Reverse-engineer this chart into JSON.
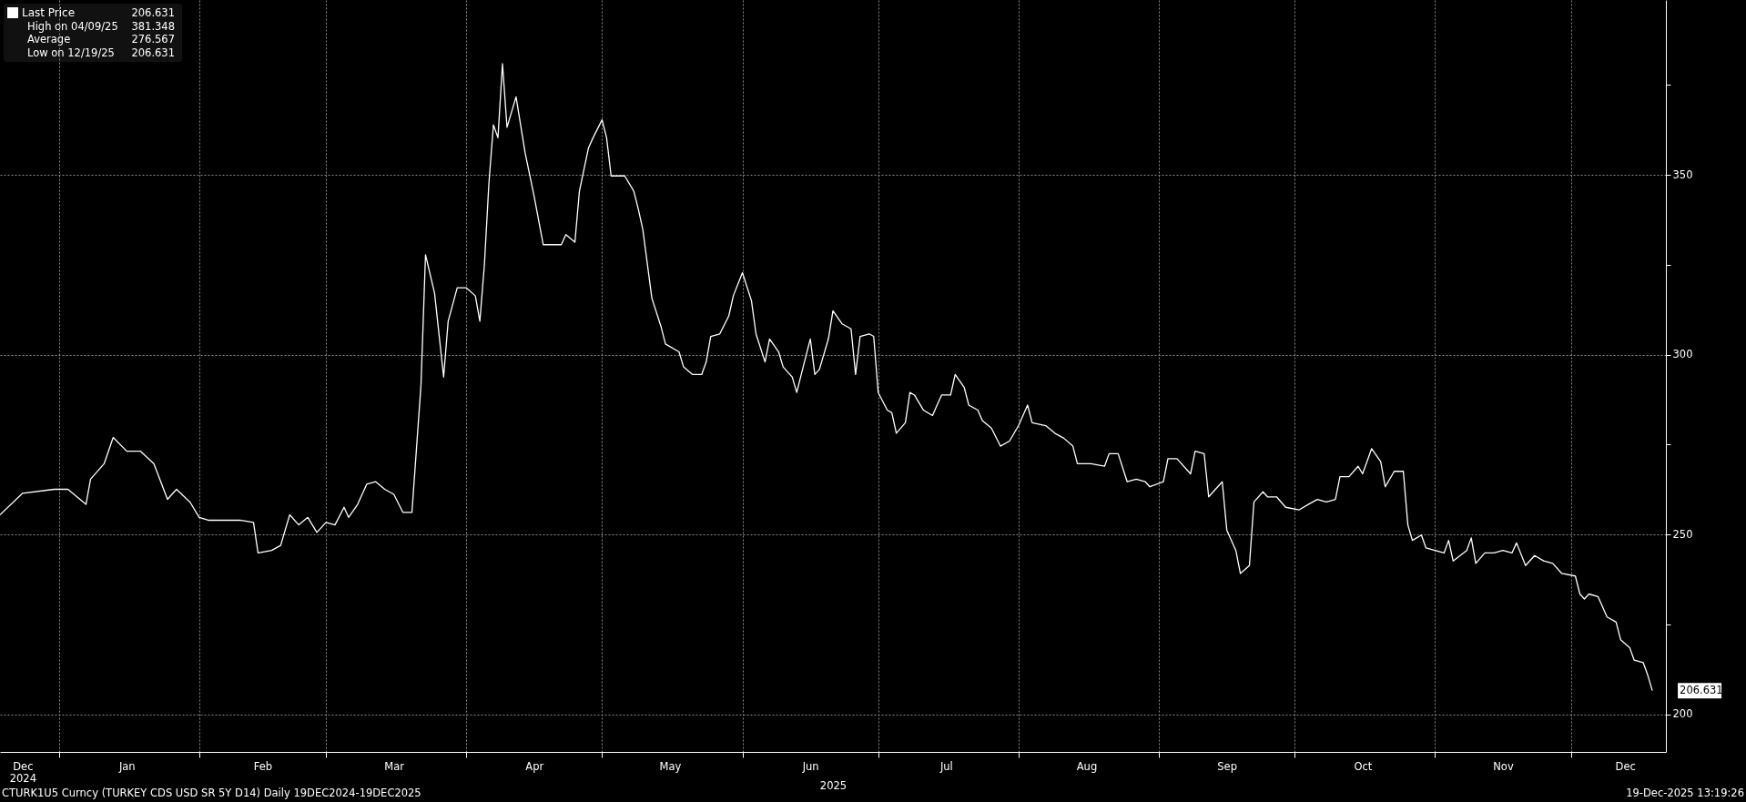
{
  "chart_data": {
    "type": "line",
    "title": "CTURK1U5 Curncy (TURKEY CDS USD SR 5Y D14) Daily 19DEC2024-19DEC2025",
    "xlabel": "2025",
    "x": [
      "2024-12-19",
      "2024-12-24",
      "2024-12-31",
      "2025-01-03",
      "2025-01-07",
      "2025-01-08",
      "2025-01-11",
      "2025-01-13",
      "2025-01-16",
      "2025-01-19",
      "2025-01-22",
      "2025-01-25",
      "2025-01-27",
      "2025-01-30",
      "2025-02-01",
      "2025-02-03",
      "2025-02-10",
      "2025-02-13",
      "2025-02-14",
      "2025-02-17",
      "2025-02-19",
      "2025-02-21",
      "2025-02-23",
      "2025-02-25",
      "2025-02-27",
      "2025-03-01",
      "2025-03-03",
      "2025-03-05",
      "2025-03-06",
      "2025-03-08",
      "2025-03-10",
      "2025-03-12",
      "2025-03-14",
      "2025-03-16",
      "2025-03-18",
      "2025-03-20",
      "2025-03-21",
      "2025-03-22",
      "2025-03-23",
      "2025-03-25",
      "2025-03-27",
      "2025-03-28",
      "2025-03-30",
      "2025-04-01",
      "2025-04-03",
      "2025-04-04",
      "2025-04-05",
      "2025-04-06",
      "2025-04-07",
      "2025-04-08",
      "2025-04-09",
      "2025-04-10",
      "2025-04-12",
      "2025-04-14",
      "2025-04-16",
      "2025-04-18",
      "2025-04-20",
      "2025-04-22",
      "2025-04-23",
      "2025-04-25",
      "2025-04-26",
      "2025-04-28",
      "2025-04-29",
      "2025-05-01",
      "2025-05-02",
      "2025-05-03",
      "2025-05-06",
      "2025-05-08",
      "2025-05-09",
      "2025-05-10",
      "2025-05-12",
      "2025-05-14",
      "2025-05-15",
      "2025-05-18",
      "2025-05-19",
      "2025-05-21",
      "2025-05-23",
      "2025-05-24",
      "2025-05-25",
      "2025-05-27",
      "2025-05-29",
      "2025-05-30",
      "2025-06-01",
      "2025-06-03",
      "2025-06-04",
      "2025-06-06",
      "2025-06-07",
      "2025-06-09",
      "2025-06-10",
      "2025-06-12",
      "2025-06-13",
      "2025-06-14",
      "2025-06-16",
      "2025-06-17",
      "2025-06-18",
      "2025-06-20",
      "2025-06-21",
      "2025-06-23",
      "2025-06-25",
      "2025-06-26",
      "2025-06-27",
      "2025-06-29",
      "2025-06-30",
      "2025-07-01",
      "2025-07-03",
      "2025-07-04",
      "2025-07-05",
      "2025-07-07",
      "2025-07-08",
      "2025-07-09",
      "2025-07-11",
      "2025-07-13",
      "2025-07-14",
      "2025-07-15",
      "2025-07-17",
      "2025-07-18",
      "2025-07-20",
      "2025-07-21",
      "2025-07-23",
      "2025-07-24",
      "2025-07-26",
      "2025-07-28",
      "2025-07-30",
      "2025-08-01",
      "2025-08-03",
      "2025-08-04",
      "2025-08-07",
      "2025-08-09",
      "2025-08-11",
      "2025-08-13",
      "2025-08-14",
      "2025-08-17",
      "2025-08-20",
      "2025-08-21",
      "2025-08-23",
      "2025-08-25",
      "2025-08-27",
      "2025-08-29",
      "2025-08-30",
      "2025-09-02",
      "2025-09-03",
      "2025-09-05",
      "2025-09-07",
      "2025-09-08",
      "2025-09-09",
      "2025-09-11",
      "2025-09-12",
      "2025-09-15",
      "2025-09-16",
      "2025-09-18",
      "2025-09-19",
      "2025-09-21",
      "2025-09-22",
      "2025-09-24",
      "2025-09-25",
      "2025-09-27",
      "2025-09-29",
      "2025-10-02",
      "2025-10-04",
      "2025-10-06",
      "2025-10-08",
      "2025-10-10",
      "2025-10-11",
      "2025-10-13",
      "2025-10-15",
      "2025-10-16",
      "2025-10-18",
      "2025-10-20",
      "2025-10-21",
      "2025-10-23",
      "2025-10-25",
      "2025-10-26",
      "2025-10-27",
      "2025-10-29",
      "2025-10-30",
      "2025-11-01",
      "2025-11-03",
      "2025-11-04",
      "2025-11-05",
      "2025-11-08",
      "2025-11-09",
      "2025-11-10",
      "2025-11-12",
      "2025-11-14",
      "2025-11-16",
      "2025-11-18",
      "2025-11-19",
      "2025-11-21",
      "2025-11-23",
      "2025-11-25",
      "2025-11-27",
      "2025-11-29",
      "2025-12-02",
      "2025-12-03",
      "2025-12-04",
      "2025-12-05",
      "2025-12-07",
      "2025-12-09",
      "2025-12-11",
      "2025-12-12",
      "2025-12-14",
      "2025-12-15",
      "2025-12-17",
      "2025-12-18",
      "2025-12-19"
    ],
    "series": [
      {
        "name": "Last Price",
        "color": "#ffffff",
        "values": [
          255.5,
          261.5,
          262.6,
          262.6,
          258.4,
          265.4,
          269.7,
          277,
          273.2,
          273.2,
          269.7,
          259.8,
          262.6,
          259,
          254.8,
          254,
          254,
          253.4,
          244.9,
          245.6,
          247,
          255.5,
          252.7,
          254.8,
          250.6,
          253.4,
          252.7,
          257.6,
          254.8,
          258.4,
          264,
          264.7,
          262.6,
          261.2,
          256.2,
          256.2,
          273.9,
          291.6,
          327.8,
          317.1,
          293.8,
          309.3,
          318.6,
          318.6,
          316.4,
          309.3,
          324.9,
          347.6,
          363.9,
          360.3,
          380.9,
          363.2,
          371.7,
          356.1,
          344,
          330.6,
          330.6,
          330.6,
          333.4,
          331.3,
          345.5,
          357.5,
          360.3,
          365.3,
          360.3,
          349.7,
          349.7,
          345.5,
          340.5,
          334.8,
          315.7,
          307.9,
          303,
          300.8,
          296.6,
          294.5,
          294.5,
          298,
          305.1,
          305.8,
          310.8,
          316.4,
          322.8,
          315,
          305.8,
          298,
          304.4,
          300.8,
          296.6,
          293.8,
          289.5,
          294.5,
          304.4,
          294.5,
          295.9,
          304.4,
          312.2,
          308.6,
          307.2,
          294.5,
          305.1,
          305.8,
          305.1,
          289.5,
          284.6,
          283.9,
          278.2,
          281.1,
          289.5,
          288.8,
          284.6,
          283.1,
          286,
          288.8,
          288.8,
          294.5,
          290.9,
          286,
          284.6,
          281.7,
          279.6,
          274.6,
          276,
          280.3,
          286,
          281.1,
          280.3,
          278.2,
          276.8,
          274.6,
          269.7,
          269.7,
          269,
          272.5,
          272.5,
          264.7,
          265.4,
          264.7,
          263.3,
          264.7,
          271.1,
          271.1,
          268.3,
          266.9,
          273.2,
          272.5,
          260.5,
          264.7,
          251.3,
          245.6,
          239.2,
          241.4,
          259.1,
          261.9,
          260.5,
          260.5,
          257.6,
          256.9,
          258.4,
          259.8,
          259.1,
          259.8,
          266.1,
          266.1,
          269,
          266.9,
          273.9,
          270.3,
          263.3,
          267.6,
          267.6,
          252.7,
          248.4,
          249.9,
          246.3,
          245.6,
          244.9,
          248.4,
          242.7,
          245.6,
          249.1,
          242,
          244.9,
          244.9,
          245.6,
          244.9,
          247.7,
          241.4,
          244.2,
          242.7,
          242,
          239.2,
          238.5,
          233.5,
          232.1,
          233.5,
          232.8,
          227.1,
          225.7,
          220.8,
          218.6,
          215.1,
          214.4,
          210.9,
          206.631
        ]
      }
    ],
    "xlim": [
      "2024-12-19",
      "2025-12-22"
    ],
    "xticks": [
      {
        "value": "2024-12-24",
        "label": "Dec\n2024"
      },
      {
        "value": "2025-01-01",
        "label": null
      },
      {
        "value": "2025-01-16",
        "label": "Jan"
      },
      {
        "value": "2025-02-01",
        "label": null
      },
      {
        "value": "2025-02-15",
        "label": "Feb"
      },
      {
        "value": "2025-03-01",
        "label": null
      },
      {
        "value": "2025-03-16",
        "label": "Mar"
      },
      {
        "value": "2025-04-01",
        "label": null
      },
      {
        "value": "2025-04-16",
        "label": "Apr"
      },
      {
        "value": "2025-05-01",
        "label": null
      },
      {
        "value": "2025-05-16",
        "label": "May"
      },
      {
        "value": "2025-06-01",
        "label": null
      },
      {
        "value": "2025-06-16",
        "label": "Jun"
      },
      {
        "value": "2025-07-01",
        "label": null
      },
      {
        "value": "2025-07-16",
        "label": "Jul"
      },
      {
        "value": "2025-08-01",
        "label": null
      },
      {
        "value": "2025-08-16",
        "label": "Aug"
      },
      {
        "value": "2025-09-01",
        "label": null
      },
      {
        "value": "2025-09-16",
        "label": "Sep"
      },
      {
        "value": "2025-10-01",
        "label": null
      },
      {
        "value": "2025-10-16",
        "label": "Oct"
      },
      {
        "value": "2025-11-01",
        "label": null
      },
      {
        "value": "2025-11-16",
        "label": "Nov"
      },
      {
        "value": "2025-12-01",
        "label": null
      },
      {
        "value": "2025-12-13",
        "label": "Dec"
      }
    ],
    "ylim": [
      189.6,
      398.6
    ],
    "yticks": [
      200,
      {
        "value": 225,
        "label": null
      },
      250,
      {
        "value": 275,
        "label": null
      },
      300,
      {
        "value": 325,
        "label": null
      },
      350,
      {
        "value": 375,
        "label": null
      }
    ],
    "grid": true,
    "legend": "top left",
    "annotations": [
      "206.631",
      "High on 04/09/25 381.348",
      "Average 276.567",
      "Low on 12/19/25 206.631",
      {
        "text": "206.631",
        "x": "2025-12-19",
        "y": 206.631
      },
      "19-Dec-2025 13:19:26"
    ]
  }
}
